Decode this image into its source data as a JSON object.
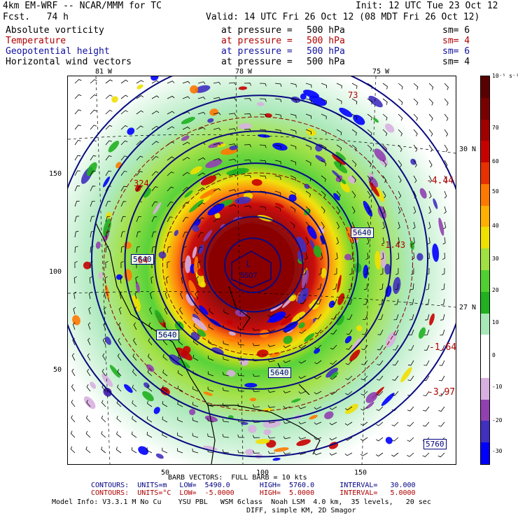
{
  "header": {
    "model_line": "4km EM-WRF -- NCAR/MMM for TC",
    "init": "Init: 12 UTC Tue 23 Oct 12",
    "fcst": "Fcst.   74 h",
    "valid": "Valid: 14 UTC Fri 26 Oct 12 (08 MDT Fri 26 Oct 12)"
  },
  "fields": [
    {
      "name": "Absolute vorticity",
      "at": "at pressure =",
      "level": "500 hPa",
      "sm": "sm= 6",
      "color": "#000000"
    },
    {
      "name": "Temperature",
      "at": "at pressure =",
      "level": "500 hPa",
      "sm": "sm= 4",
      "color": "#b00000"
    },
    {
      "name": "Geopotential height",
      "at": "at pressure =",
      "level": "500 hPa",
      "sm": "sm= 6",
      "color": "#1010a0"
    },
    {
      "name": "Horizontal wind vectors",
      "at": "at pressure =",
      "level": "500 hPa",
      "sm": "sm= 4",
      "color": "#000000"
    }
  ],
  "top_lon_labels": [
    "81 W",
    "78 W",
    "75 W"
  ],
  "right_lat_labels": [
    "30 N",
    "27 N"
  ],
  "left_axis": [
    "150",
    "100",
    "50"
  ],
  "bottom_axis": [
    "50",
    "100",
    "150"
  ],
  "colorbar": {
    "unit": "10⁻⁵ s⁻¹",
    "labels": [
      "70",
      "60",
      "50",
      "40",
      "30",
      "20",
      "10",
      "0",
      "-10",
      "-20",
      "-30"
    ],
    "colors": [
      "#5a0000",
      "#7a0000",
      "#a00000",
      "#c80000",
      "#e83000",
      "#ff7800",
      "#ffb000",
      "#f0e000",
      "#a0e040",
      "#50d030",
      "#20b020",
      "#a8e8b8",
      "#ffffff",
      "#ffffff",
      "#d8b0e0",
      "#9040b0",
      "#4030c0",
      "#0000ff"
    ]
  },
  "map_labels": {
    "center_low": "L",
    "center_low_value": "5507",
    "height_boxes": [
      "5640",
      "5640",
      "5640",
      "5640",
      "5760"
    ],
    "temp_values": [
      "-4.44",
      "-1.64",
      "-3.97",
      "-1.43"
    ],
    "misc": [
      "73",
      "324",
      "64"
    ]
  },
  "footer": {
    "barb": "BARB VECTORS:  FULL BARB = 10 kts",
    "contours1": "CONTOURS:  UNITS=m   LOW=  5490.0       HIGH=  5760.0      INTERVAL=   30.000",
    "contours2": "CONTOURS:  UNITS=°C  LOW=  -5.0000      HIGH=  5.0000      INTERVAL=   5.0000",
    "model_info": "Model Info: V3.3.1 M No Cu    YSU PBL   WSM 6class  Noah LSM  4.0 km,  35 levels,   20 sec",
    "model_info2": "DIFF, simple KM, 2D Smagor"
  }
}
